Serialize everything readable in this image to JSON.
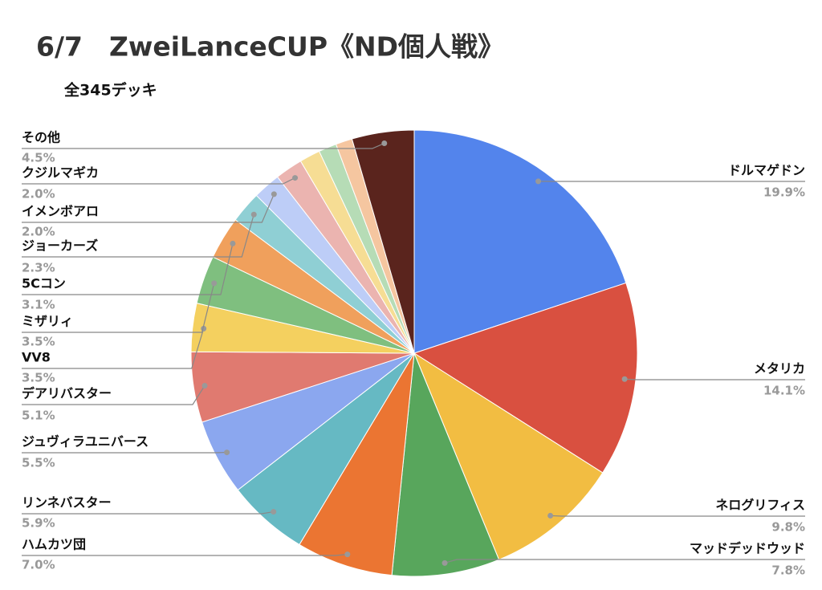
{
  "chart_data": {
    "type": "pie",
    "title": "6/7　ZweiLanceCUP《ND個人戦》",
    "subtitle": "全345デッキ",
    "categories": [
      "ドルマゲドン",
      "メタリカ",
      "ネログリフィス",
      "マッドデッドウッド",
      "ハムカツ団",
      "リンネバスター",
      "ジュヴィラユニバース",
      "デアリバスター",
      "VV8",
      "ミザリィ",
      "5Cコン",
      "ジョーカーズ",
      "イメンボアロ",
      "クジルマギカ",
      null,
      null,
      null,
      "その他"
    ],
    "values": [
      19.9,
      14.1,
      9.8,
      7.8,
      7.0,
      5.9,
      5.5,
      5.1,
      3.5,
      3.5,
      3.1,
      2.3,
      2.0,
      2.0,
      1.5,
      1.3,
      1.2,
      4.5
    ],
    "value_labels": [
      "19.9%",
      "14.1%",
      "9.8%",
      "7.8%",
      "7.0%",
      "5.9%",
      "5.5%",
      "5.1%",
      "3.5%",
      "3.5%",
      "3.1%",
      "2.3%",
      "2.0%",
      "2.0%",
      null,
      null,
      null,
      "4.5%"
    ],
    "colors": [
      "#5384ec",
      "#d95040",
      "#f2bd42",
      "#58a65c",
      "#eb7532",
      "#66b9c3",
      "#8ba7ef",
      "#e07a70",
      "#f4d05f",
      "#7fbf7f",
      "#f0a05c",
      "#8fcfd4",
      "#bdcdf7",
      "#ebb4b0",
      "#f6dd94",
      "#b6dcb6",
      "#f5c6a0",
      "#5a241d"
    ]
  }
}
